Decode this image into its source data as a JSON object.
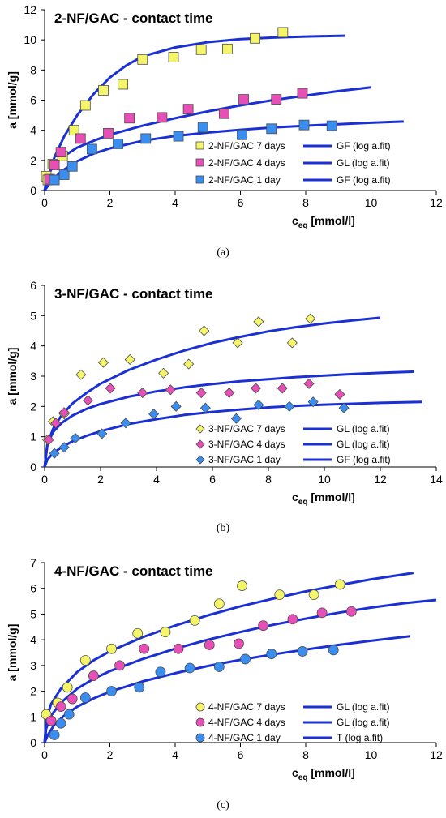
{
  "chart_data": [
    {
      "type": "scatter",
      "title": "2-NF/GAC - contact time",
      "xlabel": "c",
      "xlabel_sub": "eq",
      "xlabel_unit": " [mmol/l]",
      "ylabel": "a [mmol/g]",
      "caption": "(a)",
      "xlim": [
        0,
        12
      ],
      "ylim": [
        0,
        12
      ],
      "xticks": [
        0,
        2,
        4,
        6,
        8,
        10,
        12
      ],
      "yticks": [
        0,
        2,
        4,
        6,
        8,
        10,
        12
      ],
      "grid": false,
      "legend_position": "bottom-right",
      "marker": "square",
      "fit_color": "#1a2fd4",
      "series": [
        {
          "name": "2-NF/GAC 7 days",
          "color": "#f5f56a",
          "x": [
            0.05,
            0.1,
            0.25,
            0.55,
            0.9,
            1.25,
            1.8,
            2.4,
            3.0,
            3.95,
            4.8,
            5.6,
            6.45,
            7.3
          ],
          "y": [
            0.95,
            0.7,
            1.75,
            2.3,
            4.0,
            5.65,
            6.65,
            7.05,
            8.7,
            8.85,
            9.35,
            9.4,
            10.1,
            10.5
          ],
          "fit_name": "GF (log a.fit)",
          "fit_x": [
            0,
            0.1,
            0.3,
            0.6,
            1,
            1.5,
            2,
            2.5,
            3,
            4,
            5,
            6,
            7,
            8,
            9.2
          ],
          "fit_y": [
            0,
            0.9,
            2.2,
            3.6,
            5.0,
            6.4,
            7.5,
            8.3,
            8.9,
            9.5,
            9.85,
            10.05,
            10.15,
            10.22,
            10.27
          ]
        },
        {
          "name": "2-NF/GAC 4 days",
          "color": "#e64fb5",
          "x": [
            0.15,
            0.3,
            0.5,
            1.1,
            1.95,
            2.6,
            3.6,
            4.4,
            5.5,
            6.1,
            7.1,
            7.9
          ],
          "y": [
            0.75,
            1.7,
            2.55,
            3.45,
            3.8,
            4.8,
            4.85,
            5.4,
            5.1,
            6.05,
            6.05,
            6.45
          ],
          "fit_name": "GL (log a.fit)",
          "fit_x": [
            0,
            0.1,
            0.3,
            0.6,
            1,
            1.5,
            2,
            3,
            4,
            5,
            6,
            7,
            8,
            9,
            10
          ],
          "fit_y": [
            0,
            1.0,
            1.75,
            2.3,
            2.85,
            3.3,
            3.7,
            4.3,
            4.8,
            5.25,
            5.65,
            6.0,
            6.3,
            6.6,
            6.85
          ]
        },
        {
          "name": "2-NF/GAC 1 day",
          "color": "#3a8ef0",
          "x": [
            0.3,
            0.6,
            0.85,
            1.45,
            2.25,
            3.1,
            4.1,
            4.85,
            6.05,
            6.95,
            7.95,
            8.8
          ],
          "y": [
            0.7,
            1.05,
            1.6,
            2.75,
            3.1,
            3.45,
            3.6,
            4.2,
            3.7,
            4.1,
            4.35,
            4.3
          ],
          "fit_name": "GF (log a.fit)",
          "fit_x": [
            0,
            0.2,
            0.5,
            1,
            1.5,
            2,
            3,
            4,
            5,
            6,
            7,
            8,
            9,
            10,
            11
          ],
          "fit_y": [
            0,
            0.6,
            1.25,
            1.95,
            2.45,
            2.8,
            3.3,
            3.62,
            3.85,
            4.03,
            4.18,
            4.3,
            4.4,
            4.5,
            4.58
          ]
        }
      ]
    },
    {
      "type": "scatter",
      "title": "3-NF/GAC - contact time",
      "xlabel": "c",
      "xlabel_sub": "eq",
      "xlabel_unit": " [mmol/l]",
      "ylabel": "a [mmol/g]",
      "caption": "(b)",
      "xlim": [
        0,
        14
      ],
      "ylim": [
        0,
        6
      ],
      "xticks": [
        0,
        2,
        4,
        6,
        8,
        10,
        12,
        14
      ],
      "yticks": [
        0,
        1,
        2,
        3,
        4,
        5,
        6
      ],
      "grid": false,
      "legend_position": "bottom-right",
      "marker": "diamond",
      "fit_color": "#1a2fd4",
      "series": [
        {
          "name": "3-NF/GAC 7 days",
          "color": "#f5f56a",
          "x": [
            0.1,
            0.3,
            0.7,
            1.3,
            2.1,
            3.05,
            4.25,
            5.15,
            5.7,
            6.9,
            7.65,
            8.85,
            9.5
          ],
          "y": [
            0.9,
            1.5,
            1.75,
            3.05,
            3.45,
            3.55,
            3.1,
            3.4,
            4.5,
            4.1,
            4.8,
            4.1,
            4.9
          ],
          "fit_name": "GL (log a.fit)",
          "fit_x": [
            0,
            0.1,
            0.3,
            0.6,
            1,
            1.5,
            2,
            3,
            4,
            5,
            6,
            7,
            8,
            9,
            10,
            11,
            12
          ],
          "fit_y": [
            0,
            0.75,
            1.25,
            1.7,
            2.1,
            2.45,
            2.75,
            3.2,
            3.55,
            3.85,
            4.1,
            4.3,
            4.48,
            4.62,
            4.74,
            4.84,
            4.93
          ]
        },
        {
          "name": "3-NF/GAC 4 days",
          "color": "#e64fb5",
          "x": [
            0.15,
            0.4,
            0.7,
            1.55,
            2.35,
            3.5,
            4.5,
            5.6,
            6.6,
            7.55,
            8.5,
            9.45,
            10.55
          ],
          "y": [
            0.9,
            1.45,
            1.8,
            2.2,
            2.6,
            2.45,
            2.55,
            2.45,
            2.45,
            2.6,
            2.6,
            2.75,
            2.4
          ],
          "fit_name": "GL (log a.fit)",
          "fit_x": [
            0,
            0.1,
            0.3,
            0.6,
            1,
            1.5,
            2,
            3,
            4,
            5,
            6,
            7,
            8,
            9,
            10,
            11,
            12,
            13.2
          ],
          "fit_y": [
            0,
            0.75,
            1.15,
            1.45,
            1.7,
            1.92,
            2.08,
            2.32,
            2.5,
            2.63,
            2.74,
            2.83,
            2.9,
            2.97,
            3.02,
            3.07,
            3.11,
            3.15
          ]
        },
        {
          "name": "3-NF/GAC 1 day",
          "color": "#3a8ef0",
          "x": [
            0.35,
            0.7,
            1.1,
            2.05,
            2.9,
            3.9,
            4.7,
            5.75,
            6.85,
            7.65,
            8.75,
            9.6,
            10.7
          ],
          "y": [
            0.45,
            0.65,
            0.95,
            1.1,
            1.45,
            1.75,
            2.0,
            1.95,
            1.6,
            2.05,
            2.0,
            2.15,
            1.95
          ],
          "fit_name": "GF (log a.fit)",
          "fit_x": [
            0,
            0.1,
            0.3,
            0.6,
            1,
            1.5,
            2,
            3,
            4,
            5,
            6,
            7,
            8,
            9,
            10,
            11,
            12,
            13.5
          ],
          "fit_y": [
            0,
            0.25,
            0.45,
            0.65,
            0.85,
            1.03,
            1.18,
            1.42,
            1.58,
            1.72,
            1.82,
            1.9,
            1.97,
            2.02,
            2.06,
            2.09,
            2.12,
            2.15
          ]
        }
      ]
    },
    {
      "type": "scatter",
      "title": "4-NF/GAC - contact time",
      "xlabel": "c",
      "xlabel_sub": "eq",
      "xlabel_unit": " [mmol/l]",
      "ylabel": "a [mmol/g]",
      "caption": "(c)",
      "xlim": [
        0,
        12
      ],
      "ylim": [
        0,
        7
      ],
      "xticks": [
        0,
        2,
        4,
        6,
        8,
        10,
        12
      ],
      "yticks": [
        0,
        1,
        2,
        3,
        4,
        5,
        6,
        7
      ],
      "grid": false,
      "legend_position": "bottom-right",
      "marker": "circle",
      "fit_color": "#1a2fd4",
      "series": [
        {
          "name": "4-NF/GAC 7 days",
          "color": "#f5f56a",
          "x": [
            0.05,
            0.4,
            0.7,
            1.25,
            2.05,
            2.85,
            3.7,
            4.6,
            5.35,
            6.05,
            7.2,
            8.25,
            9.05
          ],
          "y": [
            1.1,
            1.55,
            2.15,
            3.2,
            3.65,
            4.25,
            4.3,
            4.75,
            5.4,
            6.1,
            5.75,
            5.75,
            6.15
          ],
          "fit_name": "GL (log a.fit)",
          "fit_x": [
            0,
            0.05,
            0.2,
            0.5,
            1,
            1.5,
            2,
            3,
            4,
            5,
            6,
            7,
            8,
            9,
            10,
            11.3
          ],
          "fit_y": [
            0,
            0.9,
            1.5,
            2.1,
            2.75,
            3.2,
            3.55,
            4.1,
            4.55,
            4.95,
            5.3,
            5.6,
            5.88,
            6.12,
            6.35,
            6.6
          ]
        },
        {
          "name": "4-NF/GAC 4 days",
          "color": "#e64fb5",
          "x": [
            0.2,
            0.5,
            0.85,
            1.5,
            2.3,
            3.05,
            4.1,
            5.05,
            5.95,
            6.7,
            7.6,
            8.5,
            9.4
          ],
          "y": [
            0.85,
            1.4,
            1.7,
            2.6,
            3.0,
            3.65,
            3.65,
            3.8,
            3.85,
            4.55,
            4.8,
            5.05,
            5.1
          ],
          "fit_name": "GL (log a.fit)",
          "fit_x": [
            0,
            0.05,
            0.2,
            0.5,
            1,
            1.5,
            2,
            3,
            4,
            5,
            6,
            7,
            8,
            9,
            10,
            11,
            12
          ],
          "fit_y": [
            0,
            0.55,
            1.05,
            1.55,
            2.1,
            2.48,
            2.78,
            3.25,
            3.65,
            4.0,
            4.3,
            4.58,
            4.82,
            5.05,
            5.25,
            5.42,
            5.55
          ]
        },
        {
          "name": "4-NF/GAC 1 day",
          "color": "#3a8ef0",
          "x": [
            0.3,
            0.5,
            0.75,
            1.25,
            2.05,
            2.9,
            3.55,
            4.45,
            5.35,
            6.15,
            6.95,
            7.9,
            8.85
          ],
          "y": [
            0.3,
            0.75,
            1.1,
            1.75,
            2.0,
            2.15,
            2.75,
            2.9,
            2.95,
            3.25,
            3.45,
            3.55,
            3.6
          ],
          "fit_name": "T (log a.fit)",
          "fit_x": [
            0,
            0.1,
            0.3,
            0.6,
            1,
            1.5,
            2,
            3,
            4,
            5,
            6,
            7,
            8,
            9,
            10,
            11.2
          ],
          "fit_y": [
            0,
            0.3,
            0.7,
            1.05,
            1.4,
            1.72,
            1.98,
            2.38,
            2.7,
            2.98,
            3.22,
            3.43,
            3.62,
            3.8,
            3.96,
            4.14
          ]
        }
      ]
    }
  ]
}
